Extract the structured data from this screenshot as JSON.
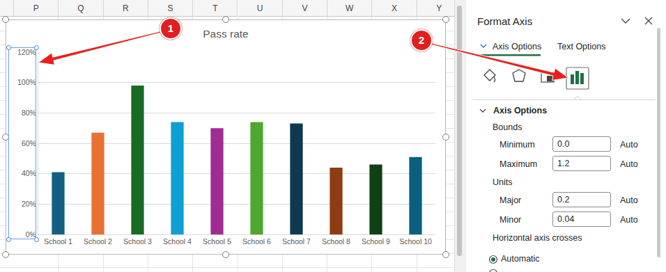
{
  "spreadsheet": {
    "columns": [
      "P",
      "Q",
      "R",
      "S",
      "T",
      "U",
      "V",
      "W",
      "X",
      "Y"
    ]
  },
  "chart_data": {
    "type": "bar",
    "title": "Pass rate",
    "categories": [
      "School 1",
      "School 2",
      "School 3",
      "School 4",
      "School 5",
      "School 6",
      "School 7",
      "School 8",
      "School 9",
      "School 10"
    ],
    "values": [
      41,
      67,
      98,
      74,
      70,
      74,
      73,
      44,
      46,
      51
    ],
    "colors": [
      "#156082",
      "#e97132",
      "#196b24",
      "#0f9ed5",
      "#a02b93",
      "#4ea72e",
      "#0e3a4f",
      "#8f3b13",
      "#0f4115",
      "#0a5f80"
    ],
    "ylim": [
      0,
      120
    ],
    "yticks": [
      {
        "value": 0,
        "label": "0%"
      },
      {
        "value": 20,
        "label": "20%"
      },
      {
        "value": 40,
        "label": "40%"
      },
      {
        "value": 60,
        "label": "60%"
      },
      {
        "value": 80,
        "label": "80%"
      },
      {
        "value": 100,
        "label": "100%"
      },
      {
        "value": 120,
        "label": "120%"
      }
    ],
    "grid": true
  },
  "format_pane": {
    "title": "Format Axis",
    "tabs": [
      "Axis Options",
      "Text Options"
    ],
    "section": "Axis Options",
    "groups": [
      {
        "heading": "Bounds",
        "rows": [
          {
            "label": "Minimum",
            "value": "0.0",
            "reset": "Auto"
          },
          {
            "label": "Maximum",
            "value": "1.2",
            "reset": "Auto"
          }
        ]
      },
      {
        "heading": "Units",
        "rows": [
          {
            "label": "Major",
            "value": "0.2",
            "reset": "Auto"
          },
          {
            "label": "Minor",
            "value": "0.04",
            "reset": "Auto"
          }
        ]
      }
    ],
    "crosses_heading": "Horizontal axis crosses",
    "crosses_option": "Automatic"
  },
  "callouts": [
    "1",
    "2"
  ]
}
